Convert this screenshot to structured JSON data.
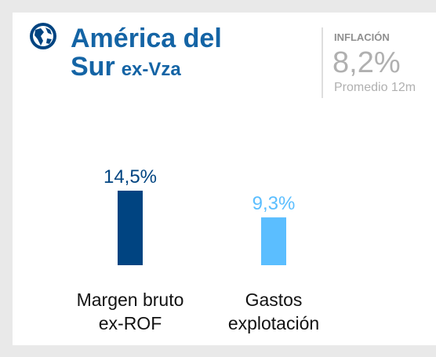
{
  "header": {
    "title": [
      "América del",
      "Sur"
    ],
    "subtitle": "ex-Vza"
  },
  "inflation": {
    "title": "INFLACIÓN",
    "value": "8,2%",
    "note": "Promedio 12m"
  },
  "chart_data": {
    "type": "bar",
    "categories": [
      [
        "Margen bruto",
        "ex-ROF"
      ],
      [
        "Gastos",
        "explotación"
      ]
    ],
    "values": [
      14.5,
      9.3
    ],
    "value_labels": [
      "14,5%",
      "9,3%"
    ],
    "colors": [
      "#004481",
      "#5bbeff"
    ]
  }
}
